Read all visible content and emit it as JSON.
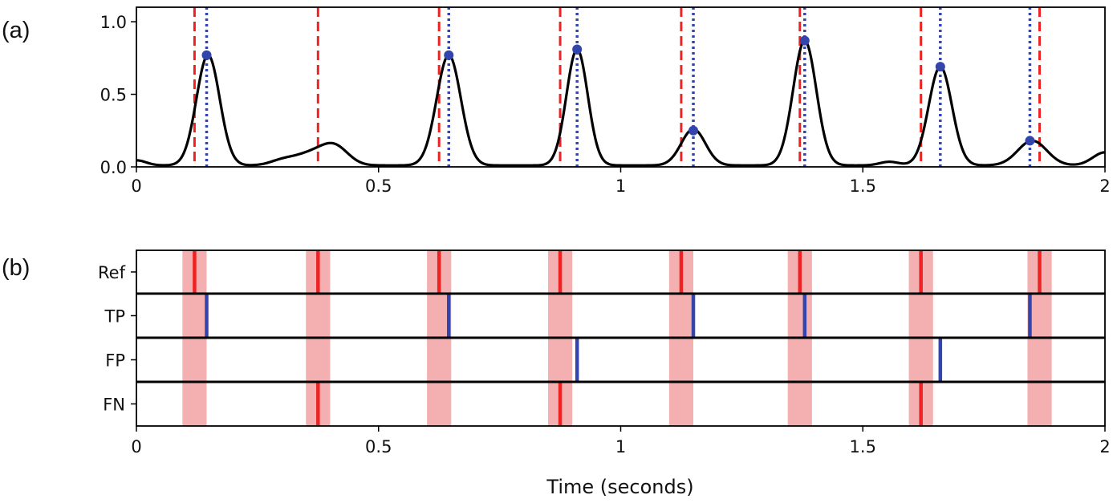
{
  "chart_data": [
    {
      "panel": "(a)",
      "type": "line",
      "xlim": [
        0,
        2
      ],
      "ylim": [
        0,
        1.1
      ],
      "xticks": [
        "0",
        "0.5",
        "1",
        "1.5",
        "2"
      ],
      "xtick_values": [
        0,
        0.5,
        1,
        1.5,
        2
      ],
      "yticks": [
        "0.0",
        "0.5",
        "1.0"
      ],
      "ytick_values": [
        0,
        0.5,
        1.0
      ],
      "signal": {
        "baseline": 0.01,
        "bumps": [
          {
            "t": 0.0,
            "amp": 0.035,
            "width": 0.02
          },
          {
            "t": 0.148,
            "amp": 0.76,
            "width": 0.024
          },
          {
            "t": 0.3,
            "amp": 0.03,
            "width": 0.025
          },
          {
            "t": 0.36,
            "amp": 0.08,
            "width": 0.035
          },
          {
            "t": 0.41,
            "amp": 0.12,
            "width": 0.028
          },
          {
            "t": 0.645,
            "amp": 0.76,
            "width": 0.025
          },
          {
            "t": 0.91,
            "amp": 0.8,
            "width": 0.022
          },
          {
            "t": 1.15,
            "amp": 0.25,
            "width": 0.025
          },
          {
            "t": 1.38,
            "amp": 0.86,
            "width": 0.024
          },
          {
            "t": 1.555,
            "amp": 0.025,
            "width": 0.02
          },
          {
            "t": 1.66,
            "amp": 0.68,
            "width": 0.024
          },
          {
            "t": 1.85,
            "amp": 0.17,
            "width": 0.03
          },
          {
            "t": 2.0,
            "amp": 0.09,
            "width": 0.025
          }
        ]
      },
      "reference_lines": [
        0.12,
        0.375,
        0.625,
        0.875,
        1.125,
        1.37,
        1.62,
        1.865
      ],
      "detected_peaks": [
        {
          "x": 0.145,
          "y": 0.77
        },
        {
          "x": 0.645,
          "y": 0.77
        },
        {
          "x": 0.91,
          "y": 0.81
        },
        {
          "x": 1.15,
          "y": 0.25
        },
        {
          "x": 1.38,
          "y": 0.87
        },
        {
          "x": 1.66,
          "y": 0.69
        },
        {
          "x": 1.845,
          "y": 0.18
        }
      ],
      "colors": {
        "signal": "#000000",
        "reference": "#ee2222",
        "detected": "#3344aa"
      }
    },
    {
      "panel": "(b)",
      "type": "event-raster",
      "xlim": [
        0,
        2
      ],
      "xlabel": "Time (seconds)",
      "xticks": [
        "0",
        "0.5",
        "1",
        "1.5",
        "2"
      ],
      "xtick_values": [
        0,
        0.5,
        1,
        1.5,
        2
      ],
      "tolerance_half_width": 0.025,
      "tolerance_centers": [
        0.12,
        0.375,
        0.625,
        0.875,
        1.125,
        1.37,
        1.62,
        1.865
      ],
      "rows": [
        {
          "label": "Ref",
          "kind": "ref",
          "events": [
            0.12,
            0.375,
            0.625,
            0.875,
            1.125,
            1.37,
            1.62,
            1.865
          ]
        },
        {
          "label": "TP",
          "kind": "det",
          "events": [
            0.145,
            0.645,
            1.15,
            1.38,
            1.845
          ]
        },
        {
          "label": "FP",
          "kind": "det",
          "events": [
            0.91,
            1.66
          ]
        },
        {
          "label": "FN",
          "kind": "ref",
          "events": [
            0.375,
            0.875,
            1.62
          ]
        }
      ],
      "colors": {
        "band": "#f4b0b0",
        "ref": "#ee2222",
        "det": "#3344aa"
      }
    }
  ],
  "labels": {
    "panel_a": "(a)",
    "panel_b": "(b)"
  }
}
